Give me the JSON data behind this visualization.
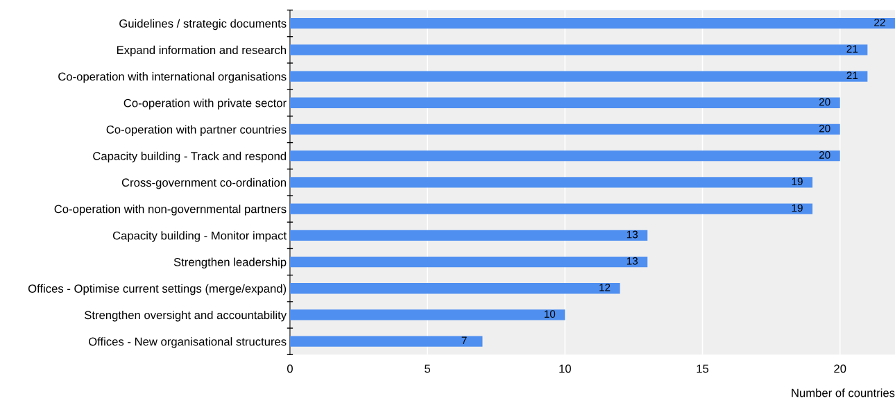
{
  "chart_data": {
    "type": "bar",
    "orientation": "horizontal",
    "xlabel": "Number of countries",
    "categories": [
      "Guidelines / strategic documents",
      "Expand information and research",
      "Co-operation with international organisations",
      "Co-operation with private sector",
      "Co-operation with partner countries",
      "Capacity building - Track and respond",
      "Cross-government co-ordination",
      "Co-operation with non-governmental partners",
      "Capacity building - Monitor impact",
      "Strengthen leadership",
      "Offices - Optimise current settings (merge/expand)",
      "Strengthen oversight and accountability",
      "Offices - New organisational structures"
    ],
    "values": [
      22,
      21,
      21,
      20,
      20,
      20,
      19,
      19,
      13,
      13,
      12,
      10,
      7
    ],
    "color": "#4f8ff0",
    "data_labels": true,
    "xlim": [
      0,
      22
    ],
    "xticks": [
      0,
      5,
      10,
      15,
      20
    ],
    "grid": "x"
  }
}
